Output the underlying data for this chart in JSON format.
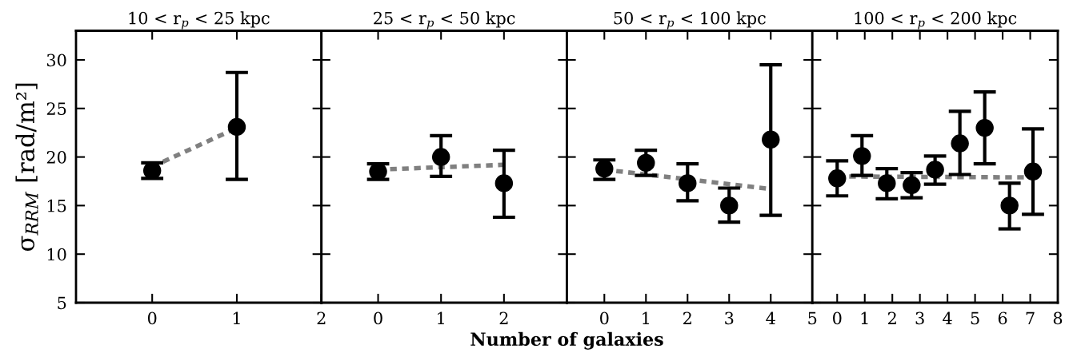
{
  "chart_data": [
    {
      "type": "scatter",
      "title": "10 < r$_{p}$ < 25 kpc",
      "ylabel": "σ$_{RRM}$ [rad/m²]",
      "xlim": [
        -0.9,
        2
      ],
      "xticks": [
        0,
        1,
        2
      ],
      "ylim": [
        5,
        33
      ],
      "yticks": [
        5,
        10,
        15,
        20,
        25,
        30
      ],
      "grid": false,
      "legend": false,
      "series": [
        {
          "color": "#000000",
          "marker": "circle",
          "x": [
            0,
            1
          ],
          "values": [
            18.6,
            23.1
          ],
          "errors": [
            [
              17.8,
              19.4
            ],
            [
              17.7,
              28.7
            ]
          ]
        },
        {
          "type": "line",
          "color": "#808080",
          "line_style": "dashed",
          "marker": "none",
          "x": [
            0,
            1
          ],
          "values": [
            19.0,
            23.0
          ]
        }
      ]
    },
    {
      "type": "scatter",
      "title": "25 < r$_{p}$ < 50 kpc",
      "xlabel": "Number of galaxies",
      "xlim": [
        -0.9,
        3
      ],
      "xticks": [
        0,
        1,
        2
      ],
      "ylim": [
        5,
        33
      ],
      "yticks": [
        5,
        10,
        15,
        20,
        25,
        30
      ],
      "grid": false,
      "legend": false,
      "tick_labels": "x",
      "series": [
        {
          "color": "#000000",
          "marker": "circle",
          "x": [
            0,
            1,
            2
          ],
          "values": [
            18.5,
            20.0,
            17.3
          ],
          "errors": [
            [
              17.7,
              19.3
            ],
            [
              18.0,
              22.2
            ],
            [
              13.8,
              20.7
            ]
          ]
        },
        {
          "type": "line",
          "color": "#808080",
          "line_style": "dashed",
          "marker": "none",
          "x": [
            0,
            2
          ],
          "values": [
            18.7,
            19.2
          ]
        }
      ]
    },
    {
      "type": "scatter",
      "title": "50 < r$_{p}$ < 100 kpc",
      "xlim": [
        -0.9,
        5
      ],
      "xticks": [
        0,
        1,
        2,
        3,
        4,
        5
      ],
      "ylim": [
        5,
        33
      ],
      "yticks": [
        5,
        10,
        15,
        20,
        25,
        30
      ],
      "grid": false,
      "legend": false,
      "tick_labels": "x",
      "series": [
        {
          "color": "#000000",
          "marker": "circle",
          "x": [
            0,
            1,
            2,
            3,
            4
          ],
          "values": [
            18.8,
            19.4,
            17.3,
            15.0,
            21.8
          ],
          "errors": [
            [
              17.7,
              19.7
            ],
            [
              18.1,
              20.7
            ],
            [
              15.5,
              19.3
            ],
            [
              13.3,
              16.8
            ],
            [
              14.0,
              29.5
            ]
          ]
        },
        {
          "type": "line",
          "color": "#808080",
          "line_style": "dashed",
          "marker": "none",
          "x": [
            0,
            4
          ],
          "values": [
            18.7,
            16.7
          ]
        }
      ]
    },
    {
      "type": "scatter",
      "title": "100 < r$_{p}$ < 200 kpc",
      "xlim": [
        -0.9,
        8
      ],
      "xticks": [
        0,
        1,
        2,
        3,
        4,
        5,
        6,
        7,
        8
      ],
      "ylim": [
        5,
        33
      ],
      "yticks": [
        5,
        10,
        15,
        20,
        25,
        30
      ],
      "grid": false,
      "legend": false,
      "tick_labels": "x",
      "series": [
        {
          "color": "#000000",
          "marker": "circle",
          "x": [
            0,
            0.9,
            1.8,
            2.7,
            3.55,
            4.45,
            5.35,
            6.25,
            7.1
          ],
          "values": [
            17.8,
            20.1,
            17.3,
            17.1,
            18.7,
            21.4,
            23.0,
            15.0,
            18.5
          ],
          "errors": [
            [
              16.0,
              19.6
            ],
            [
              18.1,
              22.2
            ],
            [
              15.7,
              18.8
            ],
            [
              15.8,
              18.4
            ],
            [
              17.2,
              20.1
            ],
            [
              18.2,
              24.7
            ],
            [
              19.3,
              26.7
            ],
            [
              12.6,
              17.3
            ],
            [
              14.1,
              22.9
            ]
          ]
        },
        {
          "type": "line",
          "color": "#808080",
          "line_style": "dashed",
          "marker": "none",
          "x": [
            0,
            7.1
          ],
          "values": [
            18.0,
            17.9
          ]
        }
      ]
    }
  ]
}
